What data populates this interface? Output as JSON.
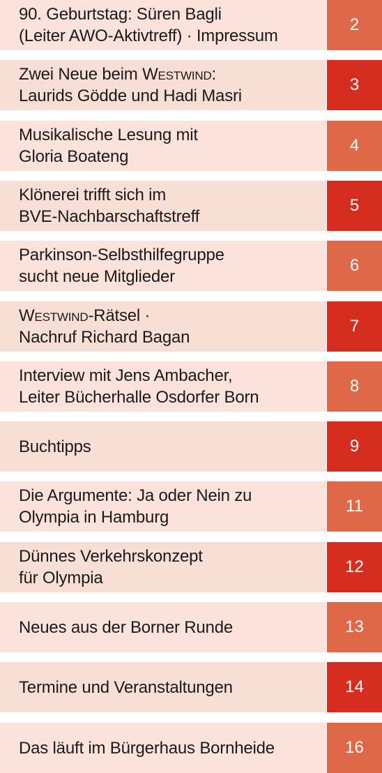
{
  "toc": [
    {
      "lines": [
        "90. Geburtstag: Süren Bagli",
        "(Leiter AWO-Aktivtreff) · Impressum"
      ],
      "page": "2",
      "row_bg": "#fbe3dc",
      "num_bg": "#de6847"
    },
    {
      "lines": [
        "Zwei Neue beim Westwind:",
        "Laurids Gödde und Hadi Masri"
      ],
      "page": "3",
      "row_bg": "#f8dfd6",
      "num_bg": "#d52d20"
    },
    {
      "lines": [
        "Musikalische Lesung mit",
        "Gloria Boateng"
      ],
      "page": "4",
      "row_bg": "#fbe3dc",
      "num_bg": "#de6847"
    },
    {
      "lines": [
        "Klönerei trifft sich im",
        "BVE-Nachbarschaftstreff"
      ],
      "page": "5",
      "row_bg": "#f8dfd6",
      "num_bg": "#d52d20"
    },
    {
      "lines": [
        "Parkinson-Selbsthilfegruppe",
        "sucht neue Mitglieder"
      ],
      "page": "6",
      "row_bg": "#fbe3dc",
      "num_bg": "#de6847"
    },
    {
      "lines": [
        "Westwind-Rätsel ·",
        "Nachruf Richard Bagan"
      ],
      "page": "7",
      "row_bg": "#f8dfd6",
      "num_bg": "#d52d20"
    },
    {
      "lines": [
        "Interview mit Jens Ambacher,",
        "Leiter Bücherhalle Osdorfer Born"
      ],
      "page": "8",
      "row_bg": "#fbe3dc",
      "num_bg": "#de6847"
    },
    {
      "lines": [
        "Buchtipps"
      ],
      "page": "9",
      "row_bg": "#f8dfd6",
      "num_bg": "#d52d20"
    },
    {
      "lines": [
        "Die Argumente: Ja oder Nein zu",
        "Olympia in Hamburg"
      ],
      "page": "11",
      "row_bg": "#fbe3dc",
      "num_bg": "#de6847"
    },
    {
      "lines": [
        "Dünnes Verkehrskonzept",
        "für Olympia"
      ],
      "page": "12",
      "row_bg": "#f8dfd6",
      "num_bg": "#d52d20"
    },
    {
      "lines": [
        "Neues aus der Borner Runde"
      ],
      "page": "13",
      "row_bg": "#fbe3dc",
      "num_bg": "#de6847"
    },
    {
      "lines": [
        "Termine und Veranstaltungen"
      ],
      "page": "14",
      "row_bg": "#f8dfd6",
      "num_bg": "#d52d20"
    },
    {
      "lines": [
        "Das läuft im Bürgerhaus Bornheide"
      ],
      "page": "16",
      "row_bg": "#fbe3dc",
      "num_bg": "#de6847"
    }
  ]
}
